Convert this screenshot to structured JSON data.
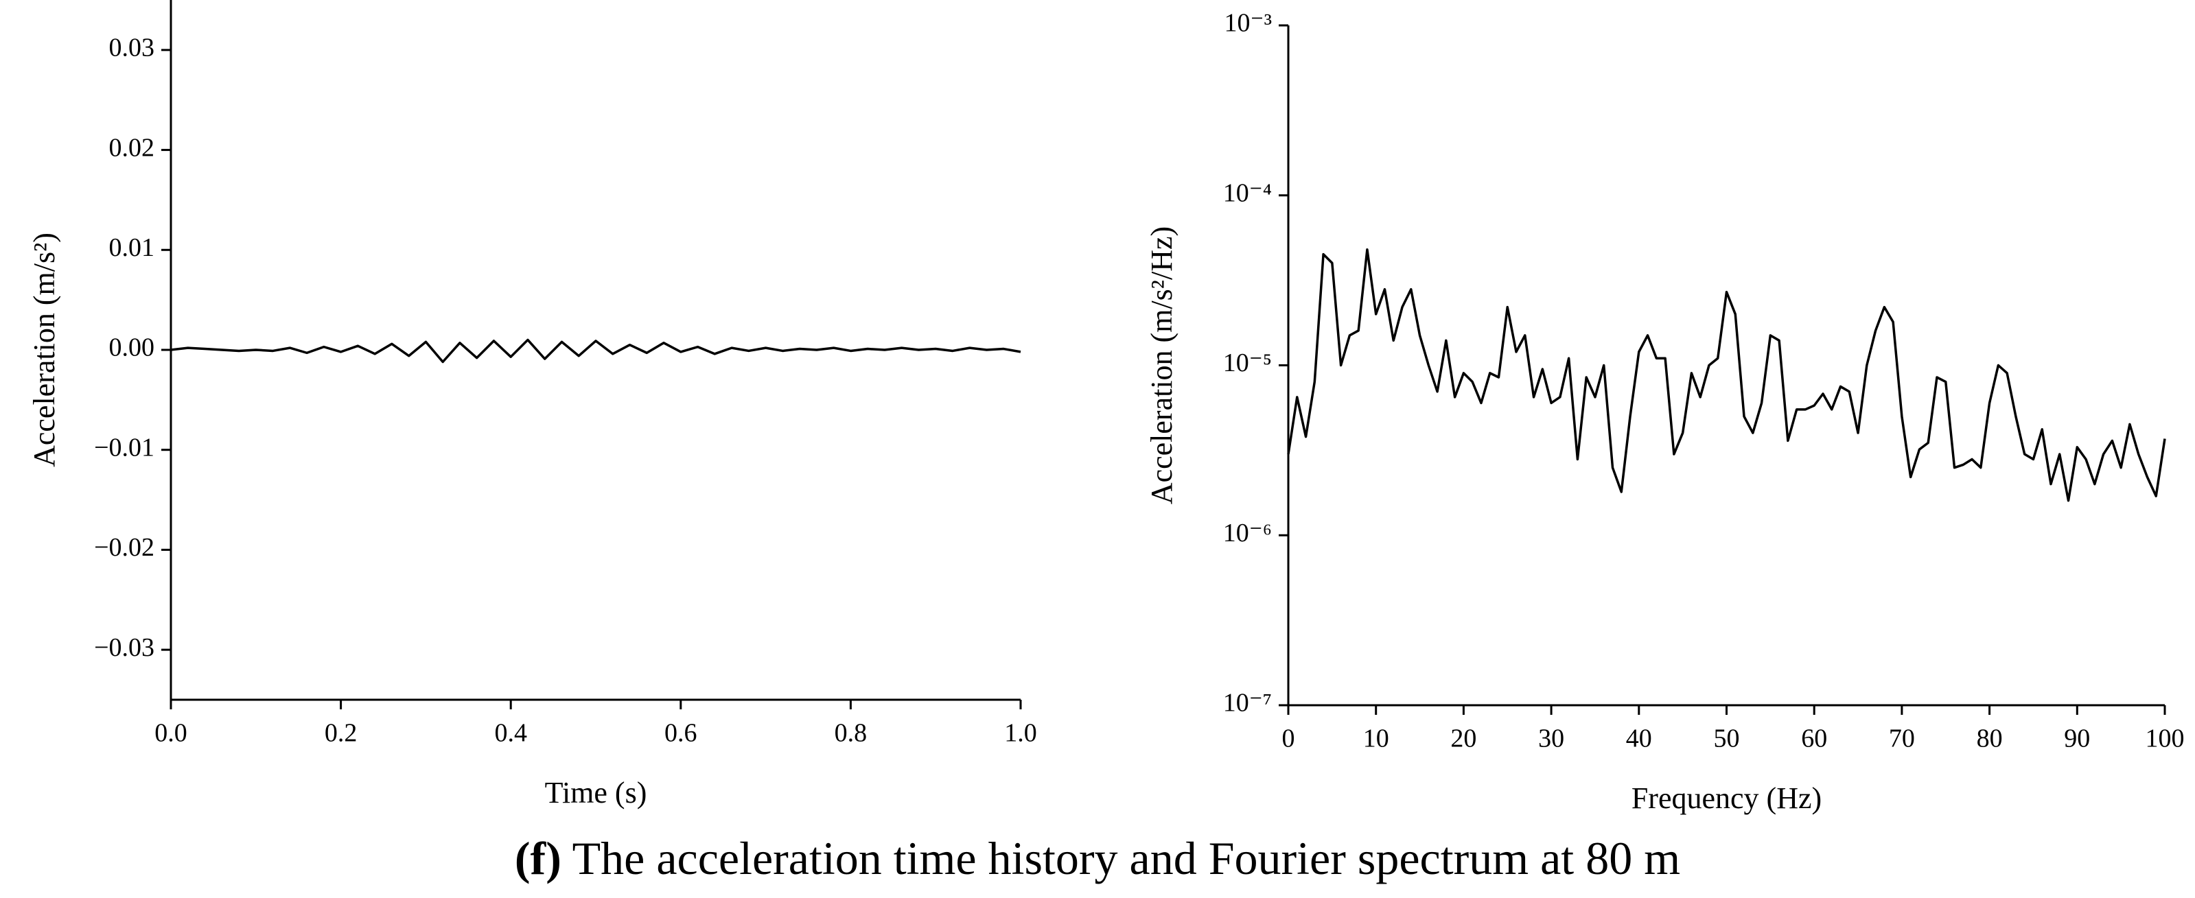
{
  "chart_data": [
    {
      "type": "line",
      "xlabel": "Time (s)",
      "ylabel": "Acceleration (m/s²)",
      "xlim": [
        0,
        1
      ],
      "ylim": [
        -0.035,
        0.035
      ],
      "xticks": [
        {
          "value": 0,
          "label": "0.0"
        },
        0.2,
        0.4,
        0.6,
        0.8,
        {
          "value": 1,
          "label": "1.0"
        }
      ],
      "yticks": [
        {
          "value": -0.03,
          "label": "−0.03"
        },
        {
          "value": -0.02,
          "label": "−0.02"
        },
        {
          "value": -0.01,
          "label": "−0.01"
        },
        {
          "value": 0,
          "label": "0.00"
        },
        0.01,
        0.02,
        0.03
      ],
      "color": "#000000",
      "x": [
        0,
        0.02,
        0.04,
        0.06,
        0.08,
        0.1,
        0.12,
        0.14,
        0.16,
        0.18,
        0.2,
        0.22,
        0.24,
        0.26,
        0.28,
        0.3,
        0.32,
        0.34,
        0.36,
        0.38,
        0.4,
        0.42,
        0.44,
        0.46,
        0.48,
        0.5,
        0.52,
        0.54,
        0.56,
        0.58,
        0.6,
        0.62,
        0.64,
        0.66,
        0.68,
        0.7,
        0.72,
        0.74,
        0.76,
        0.78,
        0.8,
        0.82,
        0.84,
        0.86,
        0.88,
        0.9,
        0.92,
        0.94,
        0.96,
        0.98,
        1
      ],
      "values": [
        0,
        0.0002,
        0.0001,
        0,
        -0.0001,
        0,
        -0.0001,
        0.0002,
        -0.0003,
        0.0003,
        -0.0002,
        0.0004,
        -0.0004,
        0.0006,
        -0.0006,
        0.0008,
        -0.0012,
        0.0007,
        -0.0008,
        0.0009,
        -0.0007,
        0.001,
        -0.0009,
        0.0008,
        -0.0006,
        0.0009,
        -0.0004,
        0.0005,
        -0.0003,
        0.0007,
        -0.0002,
        0.0003,
        -0.0004,
        0.0002,
        -0.0001,
        0.0002,
        -0.0001,
        0.0001,
        0,
        0.0002,
        -0.0001,
        0.0001,
        0,
        0.0002,
        0,
        0.0001,
        -0.0001,
        0.0002,
        0,
        0.0001,
        -0.0002
      ]
    },
    {
      "type": "line",
      "xlabel": "Frequency (Hz)",
      "ylabel": "Acceleration (m/s²/Hz)",
      "log_y": true,
      "xlim": [
        0,
        100
      ],
      "ylim": [
        1e-07,
        0.001
      ],
      "xticks": [
        0,
        10,
        20,
        30,
        40,
        50,
        60,
        70,
        80,
        90,
        100
      ],
      "yticks": [
        {
          "value": 1e-07,
          "label": "10⁻⁷"
        },
        {
          "value": 1e-06,
          "label": "10⁻⁶"
        },
        {
          "value": 1e-05,
          "label": "10⁻⁵"
        },
        {
          "value": 0.0001,
          "label": "10⁻⁴"
        },
        {
          "value": 0.001,
          "label": "10⁻³"
        }
      ],
      "color": "#000000",
      "x": [
        0,
        1,
        2,
        3,
        4,
        5,
        6,
        7,
        8,
        9,
        10,
        11,
        12,
        13,
        14,
        15,
        16,
        17,
        18,
        19,
        20,
        21,
        22,
        23,
        24,
        25,
        26,
        27,
        28,
        29,
        30,
        31,
        32,
        33,
        34,
        35,
        36,
        37,
        38,
        39,
        40,
        41,
        42,
        43,
        44,
        45,
        46,
        47,
        48,
        49,
        50,
        51,
        52,
        53,
        54,
        55,
        56,
        57,
        58,
        59,
        60,
        61,
        62,
        63,
        64,
        65,
        66,
        67,
        68,
        69,
        70,
        71,
        72,
        73,
        74,
        75,
        76,
        77,
        78,
        79,
        80,
        81,
        82,
        83,
        84,
        85,
        86,
        87,
        88,
        89,
        90,
        91,
        92,
        93,
        94,
        95,
        96,
        97,
        98,
        99,
        100
      ],
      "values": [
        3e-06,
        6.5e-06,
        3.8e-06,
        8e-06,
        4.5e-05,
        4e-05,
        1e-05,
        1.5e-05,
        1.6e-05,
        4.8e-05,
        2e-05,
        2.8e-05,
        1.4e-05,
        2.2e-05,
        2.8e-05,
        1.5e-05,
        1e-05,
        7e-06,
        1.4e-05,
        6.5e-06,
        9e-06,
        8e-06,
        6e-06,
        9e-06,
        8.5e-06,
        2.2e-05,
        1.2e-05,
        1.5e-05,
        6.5e-06,
        9.5e-06,
        6e-06,
        6.5e-06,
        1.1e-05,
        2.8e-06,
        8.5e-06,
        6.5e-06,
        1e-05,
        2.5e-06,
        1.8e-06,
        5e-06,
        1.2e-05,
        1.5e-05,
        1.1e-05,
        1.1e-05,
        3e-06,
        4e-06,
        9e-06,
        6.5e-06,
        1e-05,
        1.1e-05,
        2.7e-05,
        2e-05,
        5e-06,
        4e-06,
        6e-06,
        1.5e-05,
        1.4e-05,
        3.6e-06,
        5.5e-06,
        5.5e-06,
        5.8e-06,
        6.8e-06,
        5.5e-06,
        7.5e-06,
        7e-06,
        4e-06,
        1e-05,
        1.6e-05,
        2.2e-05,
        1.8e-05,
        5e-06,
        2.2e-06,
        3.2e-06,
        3.5e-06,
        8.5e-06,
        8e-06,
        2.5e-06,
        2.6e-06,
        2.8e-06,
        2.5e-06,
        6e-06,
        1e-05,
        9e-06,
        5e-06,
        3e-06,
        2.8e-06,
        4.2e-06,
        2e-06,
        3e-06,
        1.6e-06,
        3.3e-06,
        2.8e-06,
        2e-06,
        3e-06,
        3.6e-06,
        2.5e-06,
        4.5e-06,
        3e-06,
        2.2e-06,
        1.7e-06,
        3.7e-06
      ]
    }
  ],
  "caption": {
    "label": "(f)",
    "text": "The acceleration time history and Fourier spectrum at 80 m"
  }
}
